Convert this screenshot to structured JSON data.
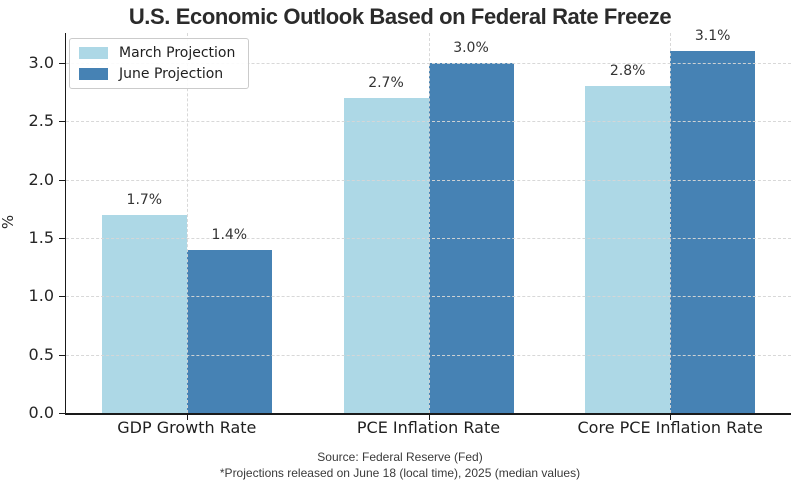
{
  "title": "U.S. Economic Outlook Based on Federal Rate Freeze",
  "chart_data": {
    "type": "bar",
    "title": "U.S. Economic Outlook Based on Federal Rate Freeze",
    "categories": [
      "GDP Growth Rate",
      "PCE Inflation Rate",
      "Core PCE Inflation Rate"
    ],
    "series": [
      {
        "name": "March Projection",
        "color": "#ADD8E6",
        "values": [
          1.7,
          2.7,
          2.8
        ],
        "labels": [
          "1.7%",
          "2.7%",
          "2.8%"
        ]
      },
      {
        "name": "June Projection",
        "color": "#4682B4",
        "values": [
          1.4,
          3.0,
          3.1
        ],
        "labels": [
          "1.4%",
          "3.0%",
          "3.1%"
        ]
      }
    ],
    "xlabel": "",
    "ylabel": "%",
    "ylim": [
      0,
      3.257
    ],
    "yticks": [
      "0.0",
      "0.5",
      "1.0",
      "1.5",
      "2.0",
      "2.5",
      "3.0"
    ],
    "grid": "dashed horizontal and vertical, drawn above bars",
    "legend_position": "upper left"
  },
  "footer": {
    "source_line": "Source: Federal Reserve (Fed)",
    "note_line": "*Projections released on June 18 (local time), 2025 (median values)"
  }
}
